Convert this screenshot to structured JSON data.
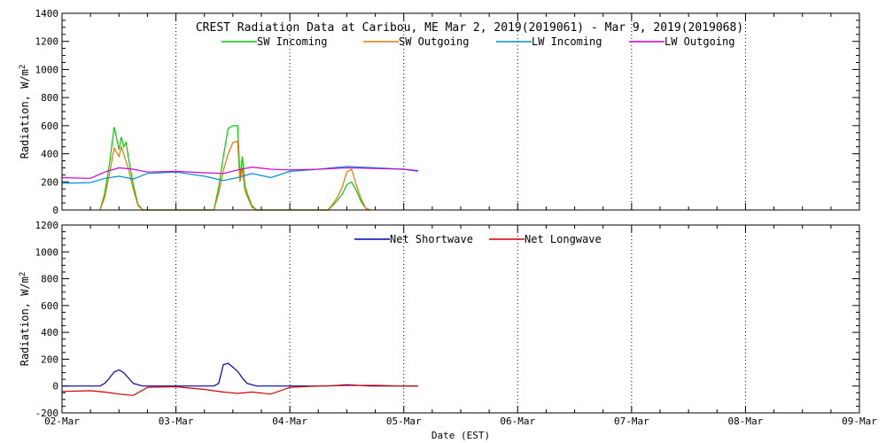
{
  "title": "CREST Radiation Data at Caribou, ME   Mar  2, 2019(2019061) - Mar  9, 2019(2019068)",
  "xlabel": "Date (EST)",
  "x_tick_labels": [
    "02-Mar",
    "03-Mar",
    "04-Mar",
    "05-Mar",
    "06-Mar",
    "07-Mar",
    "08-Mar",
    "09-Mar"
  ],
  "colors": {
    "sw_incoming": "#00cc00",
    "sw_outgoing": "#e07800",
    "lw_incoming": "#0090d0",
    "lw_outgoing": "#d000d0",
    "net_shortwave": "#0000b0",
    "net_longwave": "#d00000"
  },
  "chart_data": [
    {
      "type": "line",
      "ylabel": "Radiation, W/m^2",
      "ylim": [
        0,
        1400
      ],
      "yticks": [
        0,
        200,
        400,
        600,
        800,
        1000,
        1200,
        1400
      ],
      "xlim": [
        "2019-03-02",
        "2019-03-09"
      ],
      "grid": true,
      "legend_position": "top",
      "series": [
        {
          "name": "SW Incoming",
          "x": [
            "2019-03-02 08:00",
            "2019-03-02 09:00",
            "2019-03-02 10:00",
            "2019-03-02 11:00",
            "2019-03-02 12:00",
            "2019-03-02 12:30",
            "2019-03-02 13:00",
            "2019-03-02 13:30",
            "2019-03-02 14:00",
            "2019-03-02 15:00",
            "2019-03-02 16:00",
            "2019-03-02 17:00",
            "2019-03-03 08:00",
            "2019-03-03 09:00",
            "2019-03-03 10:00",
            "2019-03-03 11:00",
            "2019-03-03 12:00",
            "2019-03-03 13:00",
            "2019-03-03 13:30",
            "2019-03-03 14:00",
            "2019-03-03 14:30",
            "2019-03-03 15:00",
            "2019-03-03 16:00",
            "2019-03-03 17:00",
            "2019-03-04 08:00",
            "2019-03-04 09:00",
            "2019-03-04 10:00",
            "2019-03-04 11:00",
            "2019-03-04 12:00",
            "2019-03-04 13:00",
            "2019-03-04 14:00",
            "2019-03-04 15:00",
            "2019-03-04 16:00",
            "2019-03-04 17:00"
          ],
          "values": [
            0,
            120,
            330,
            590,
            430,
            520,
            450,
            480,
            370,
            180,
            40,
            0,
            0,
            160,
            380,
            580,
            600,
            600,
            240,
            380,
            180,
            120,
            30,
            0,
            0,
            30,
            70,
            110,
            180,
            200,
            140,
            60,
            10,
            0
          ]
        },
        {
          "name": "SW Outgoing",
          "x": [
            "2019-03-02 08:00",
            "2019-03-02 09:00",
            "2019-03-02 10:00",
            "2019-03-02 11:00",
            "2019-03-02 12:00",
            "2019-03-02 12:30",
            "2019-03-02 13:00",
            "2019-03-02 14:00",
            "2019-03-02 15:00",
            "2019-03-02 16:00",
            "2019-03-02 17:00",
            "2019-03-03 08:00",
            "2019-03-03 09:00",
            "2019-03-03 10:00",
            "2019-03-03 11:00",
            "2019-03-03 12:00",
            "2019-03-03 13:00",
            "2019-03-03 13:30",
            "2019-03-03 14:00",
            "2019-03-03 14:30",
            "2019-03-03 15:00",
            "2019-03-03 16:00",
            "2019-03-03 17:00",
            "2019-03-04 08:00",
            "2019-03-04 09:00",
            "2019-03-04 10:00",
            "2019-03-04 11:00",
            "2019-03-04 12:00",
            "2019-03-04 13:00",
            "2019-03-04 14:00",
            "2019-03-04 15:00",
            "2019-03-04 16:00",
            "2019-03-04 17:00"
          ],
          "values": [
            0,
            90,
            260,
            440,
            380,
            450,
            400,
            290,
            150,
            30,
            0,
            0,
            120,
            280,
            400,
            480,
            490,
            200,
            300,
            140,
            100,
            20,
            0,
            0,
            40,
            90,
            160,
            270,
            290,
            180,
            80,
            10,
            0
          ]
        },
        {
          "name": "LW Incoming",
          "x": [
            "2019-03-02 00:00",
            "2019-03-02 06:00",
            "2019-03-02 09:00",
            "2019-03-02 12:00",
            "2019-03-02 15:00",
            "2019-03-02 18:00",
            "2019-03-03 00:00",
            "2019-03-03 06:00",
            "2019-03-03 10:00",
            "2019-03-03 13:00",
            "2019-03-03 16:00",
            "2019-03-03 20:00",
            "2019-03-04 00:00",
            "2019-03-04 06:00",
            "2019-03-04 12:00",
            "2019-03-04 18:00",
            "2019-03-05 00:00",
            "2019-03-05 03:00"
          ],
          "values": [
            190,
            195,
            225,
            240,
            220,
            260,
            270,
            240,
            210,
            230,
            260,
            230,
            275,
            290,
            310,
            300,
            290,
            275
          ]
        },
        {
          "name": "LW Outgoing",
          "x": [
            "2019-03-02 00:00",
            "2019-03-02 06:00",
            "2019-03-02 09:00",
            "2019-03-02 12:00",
            "2019-03-02 15:00",
            "2019-03-02 18:00",
            "2019-03-03 00:00",
            "2019-03-03 06:00",
            "2019-03-03 10:00",
            "2019-03-03 13:00",
            "2019-03-03 16:00",
            "2019-03-03 20:00",
            "2019-03-04 00:00",
            "2019-03-04 06:00",
            "2019-03-04 12:00",
            "2019-03-04 18:00",
            "2019-03-05 00:00",
            "2019-03-05 03:00"
          ],
          "values": [
            230,
            225,
            270,
            300,
            290,
            270,
            275,
            265,
            260,
            285,
            305,
            290,
            285,
            290,
            300,
            295,
            290,
            280
          ]
        }
      ]
    },
    {
      "type": "line",
      "ylabel": "Radiation, W/m^2",
      "ylim": [
        -200,
        1200
      ],
      "yticks": [
        -200,
        0,
        200,
        400,
        600,
        800,
        1000,
        1200
      ],
      "xlim": [
        "2019-03-02",
        "2019-03-09"
      ],
      "grid": true,
      "legend_position": "top",
      "series": [
        {
          "name": "Net Shortwave",
          "x": [
            "2019-03-02 00:00",
            "2019-03-02 08:00",
            "2019-03-02 09:00",
            "2019-03-02 10:00",
            "2019-03-02 11:00",
            "2019-03-02 12:00",
            "2019-03-02 13:00",
            "2019-03-02 14:00",
            "2019-03-02 15:00",
            "2019-03-02 17:00",
            "2019-03-03 08:00",
            "2019-03-03 09:00",
            "2019-03-03 10:00",
            "2019-03-03 11:00",
            "2019-03-03 12:00",
            "2019-03-03 13:00",
            "2019-03-03 14:00",
            "2019-03-03 15:00",
            "2019-03-03 17:00",
            "2019-03-04 08:00",
            "2019-03-04 12:00",
            "2019-03-04 17:00",
            "2019-03-05 03:00"
          ],
          "values": [
            0,
            0,
            20,
            60,
            105,
            120,
            100,
            60,
            20,
            0,
            0,
            20,
            160,
            170,
            140,
            110,
            60,
            20,
            0,
            0,
            10,
            0,
            0
          ]
        },
        {
          "name": "Net Longwave",
          "x": [
            "2019-03-02 00:00",
            "2019-03-02 06:00",
            "2019-03-02 09:00",
            "2019-03-02 12:00",
            "2019-03-02 15:00",
            "2019-03-02 18:00",
            "2019-03-03 00:00",
            "2019-03-03 06:00",
            "2019-03-03 10:00",
            "2019-03-03 13:00",
            "2019-03-03 16:00",
            "2019-03-03 20:00",
            "2019-03-04 00:00",
            "2019-03-04 06:00",
            "2019-03-04 12:00",
            "2019-03-04 18:00",
            "2019-03-05 00:00",
            "2019-03-05 03:00"
          ],
          "values": [
            -40,
            -35,
            -45,
            -60,
            -70,
            -10,
            -5,
            -25,
            -45,
            -55,
            -45,
            -60,
            -10,
            0,
            5,
            5,
            0,
            0
          ]
        }
      ]
    }
  ]
}
